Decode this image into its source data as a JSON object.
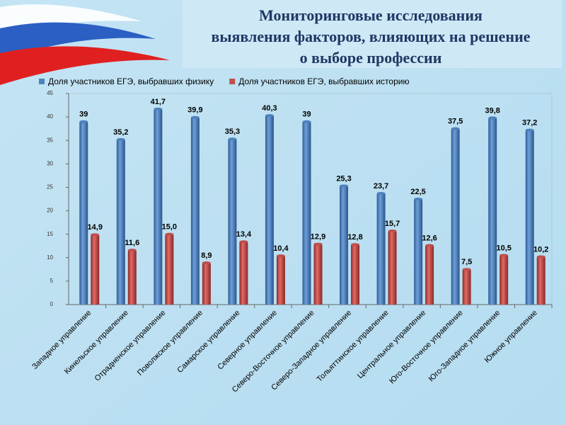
{
  "chart_data": {
    "type": "bar",
    "title": [
      "Мониторинговые исследования",
      "выявления факторов, влияющих на решение",
      "о выборе профессии"
    ],
    "categories": [
      "Западное управление",
      "Кинельское управление",
      "Отрадненское управление",
      "Поволжское управление",
      "Самарское управление",
      "Северное управление",
      "Северо-Восточное управление",
      "Северо-Западное управление",
      "Тольяттинское управление",
      "Центральное управление",
      "Юго-Восточное управление",
      "Юго-Западное управление",
      "Южное управление"
    ],
    "series": [
      {
        "name": "Доля участников ЕГЭ, выбравших физику",
        "color": "#4f81bd",
        "values": [
          39,
          35.2,
          41.7,
          39.9,
          35.3,
          40.3,
          39,
          25.3,
          23.7,
          22.5,
          37.5,
          39.8,
          37.2
        ],
        "value_labels": [
          "39",
          "35,2",
          "41,7",
          "39,9",
          "35,3",
          "40,3",
          "39",
          "25,3",
          "23,7",
          "22,5",
          "37,5",
          "39,8",
          "37,2"
        ]
      },
      {
        "name": "Доля участников ЕГЭ, выбравших историю",
        "color": "#c0504d",
        "values": [
          14.9,
          11.6,
          15.0,
          8.9,
          13.4,
          10.4,
          12.9,
          12.8,
          15.7,
          12.6,
          7.5,
          10.5,
          10.2
        ],
        "value_labels": [
          "14,9",
          "11,6",
          "15,0",
          "8,9",
          "13,4",
          "10,4",
          "12,9",
          "12,8",
          "15,7",
          "12,6",
          "7,5",
          "10,5",
          "10,2"
        ]
      }
    ],
    "ylim": [
      0,
      45
    ],
    "yticks": [
      0,
      5,
      10,
      15,
      20,
      25,
      30,
      35,
      40,
      45
    ],
    "legend": "top"
  }
}
